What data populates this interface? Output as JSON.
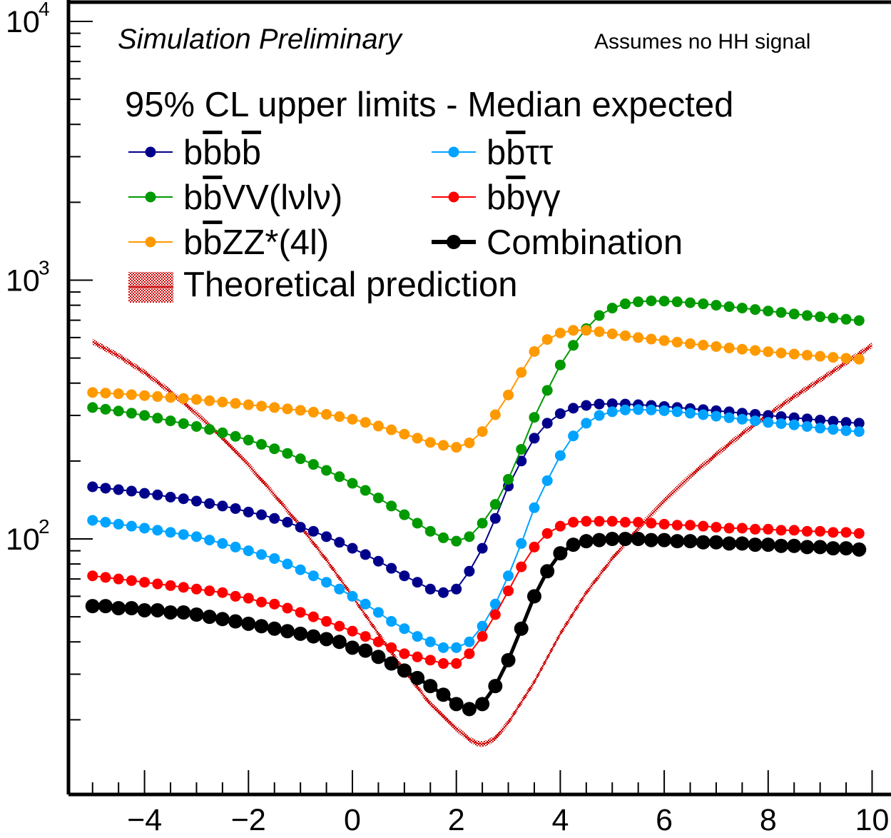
{
  "chart_data": {
    "type": "line",
    "title": "Simulation Preliminary",
    "note": "Assumes no HH signal",
    "xlabel": "",
    "ylabel": "",
    "xlim": [
      -5.3,
      10.3
    ],
    "ylim": [
      16,
      10000
    ],
    "yscale": "log",
    "grid": false,
    "legend_position": "top-left",
    "legend_header": "95% CL upper limits - Median expected",
    "x_ticks": [
      "−4",
      "−2",
      "0",
      "2",
      "4",
      "6",
      "8",
      "10"
    ],
    "y_ticks": [
      {
        "base": "10",
        "exp": "2"
      },
      {
        "base": "10",
        "exp": "3"
      },
      {
        "base": "10",
        "exp": "4"
      }
    ],
    "x": [
      -5,
      -4.75,
      -4.5,
      -4.25,
      -4,
      -3.75,
      -3.5,
      -3.25,
      -3,
      -2.75,
      -2.5,
      -2.25,
      -2,
      -1.75,
      -1.5,
      -1.25,
      -1,
      -0.75,
      -0.5,
      -0.25,
      0,
      0.25,
      0.5,
      0.75,
      1,
      1.25,
      1.5,
      1.75,
      2,
      2.25,
      2.5,
      2.75,
      3,
      3.25,
      3.5,
      3.75,
      4,
      4.25,
      4.5,
      4.75,
      5,
      5.25,
      5.5,
      5.75,
      6,
      6.25,
      6.5,
      6.75,
      7,
      7.25,
      7.5,
      7.75,
      8,
      8.25,
      8.5,
      8.75,
      9,
      9.25,
      9.5,
      9.75
    ],
    "series": [
      {
        "name": "bbbb",
        "color": "#00008b",
        "values": [
          159,
          157,
          155,
          153,
          150,
          148,
          145,
          143,
          140,
          137,
          134,
          131,
          127,
          124,
          120,
          116,
          111,
          107,
          102,
          97,
          92,
          87,
          82,
          77,
          72,
          68,
          64,
          62,
          64,
          75,
          92,
          120,
          160,
          200,
          245,
          280,
          305,
          320,
          328,
          332,
          333,
          332,
          330,
          328,
          325,
          322,
          319,
          316,
          313,
          310,
          306,
          303,
          300,
          297,
          294,
          291,
          288,
          285,
          282,
          280
        ]
      },
      {
        "name": "bbττ",
        "color": "#00a3ff",
        "values": [
          118,
          116,
          114,
          112,
          110,
          108,
          106,
          104,
          102,
          99,
          96,
          93,
          90,
          87,
          84,
          80,
          76,
          72,
          68,
          64,
          60,
          56,
          52,
          48,
          45,
          42,
          40,
          38,
          38,
          40,
          46,
          56,
          72,
          96,
          132,
          168,
          210,
          250,
          280,
          300,
          310,
          315,
          316,
          315,
          313,
          310,
          306,
          302,
          298,
          294,
          290,
          286,
          282,
          279,
          276,
          272,
          268,
          265,
          262,
          260
        ]
      },
      {
        "name": "bbVV(lνlν)",
        "color": "#009900",
        "values": [
          322,
          317,
          312,
          306,
          300,
          293,
          286,
          279,
          272,
          265,
          257,
          249,
          241,
          232,
          223,
          214,
          204,
          194,
          184,
          174,
          164,
          154,
          144,
          134,
          124,
          115,
          107,
          101,
          98,
          102,
          115,
          136,
          170,
          222,
          295,
          375,
          470,
          560,
          650,
          730,
          780,
          810,
          825,
          832,
          830,
          825,
          818,
          810,
          800,
          790,
          780,
          770,
          760,
          750,
          740,
          730,
          722,
          714,
          706,
          698
        ]
      },
      {
        "name": "bbγγ",
        "color": "#ff0000",
        "values": [
          72,
          71,
          70,
          69,
          68,
          67,
          66,
          65,
          64,
          63,
          62,
          60,
          59,
          57,
          56,
          54,
          52,
          50,
          48,
          46,
          44,
          42,
          40,
          38,
          36,
          35,
          34,
          33,
          33,
          36,
          42,
          51,
          63,
          78,
          93,
          105,
          112,
          116,
          117,
          117,
          117,
          116,
          116,
          115,
          114,
          113,
          113,
          112,
          111,
          110,
          110,
          109,
          109,
          108,
          108,
          107,
          107,
          106,
          106,
          105
        ]
      },
      {
        "name": "bbZZ*(4l)",
        "color": "#ff9900",
        "values": [
          368,
          366,
          364,
          361,
          358,
          355,
          352,
          349,
          346,
          342,
          338,
          334,
          330,
          326,
          322,
          318,
          314,
          309,
          303,
          297,
          290,
          282,
          273,
          264,
          254,
          245,
          236,
          230,
          226,
          235,
          260,
          302,
          360,
          440,
          530,
          590,
          625,
          640,
          640,
          632,
          620,
          610,
          600,
          592,
          584,
          576,
          568,
          561,
          554,
          547,
          541,
          535,
          529,
          523,
          518,
          513,
          508,
          503,
          499,
          495
        ]
      },
      {
        "name": "Combination",
        "color": "#000000",
        "values": [
          55,
          55,
          54,
          54,
          53,
          53,
          52,
          52,
          51,
          50,
          49,
          48,
          47,
          46,
          45,
          44,
          43,
          42,
          41,
          40,
          38,
          37,
          35,
          33,
          31,
          29,
          27,
          25,
          23,
          22,
          23,
          27,
          34,
          45,
          60,
          75,
          88,
          95,
          98,
          99,
          100,
          100,
          100,
          99,
          99,
          98,
          98,
          97,
          97,
          96,
          96,
          95,
          95,
          94,
          94,
          93,
          93,
          92,
          92,
          91
        ]
      }
    ],
    "theory": {
      "name": "Theoretical prediction",
      "color": "#cc0000",
      "x": [
        -5,
        -4.5,
        -4,
        -3.5,
        -3,
        -2.5,
        -2,
        -1.5,
        -1,
        -0.5,
        0,
        0.5,
        1,
        1.5,
        2,
        2.25,
        2.4,
        2.5,
        2.6,
        2.75,
        3,
        3.5,
        4,
        4.5,
        5,
        5.5,
        6,
        6.5,
        7,
        7.5,
        8,
        8.5,
        9,
        9.5,
        10
      ],
      "values": [
        578,
        510,
        440,
        370,
        305,
        245,
        193,
        148,
        112,
        83,
        60,
        43,
        31,
        23,
        18.5,
        16.8,
        16.2,
        16.1,
        16.3,
        17,
        19.5,
        28,
        43,
        62,
        84,
        110,
        140,
        175,
        212,
        255,
        302,
        355,
        412,
        480,
        560
      ]
    }
  },
  "legend_entries": [
    {
      "parts": [
        {
          "t": "b"
        },
        {
          "t": "b",
          "bar": true
        },
        {
          "t": "b"
        },
        {
          "t": "b",
          "bar": true
        }
      ]
    },
    {
      "parts": [
        {
          "t": "b"
        },
        {
          "t": "b",
          "bar": true
        },
        {
          "t": "ττ"
        }
      ]
    },
    {
      "parts": [
        {
          "t": "b"
        },
        {
          "t": "b",
          "bar": true
        },
        {
          "t": "VV(lνlν)"
        }
      ]
    },
    {
      "parts": [
        {
          "t": "b"
        },
        {
          "t": "b",
          "bar": true
        },
        {
          "t": "γγ"
        }
      ]
    },
    {
      "parts": [
        {
          "t": "b"
        },
        {
          "t": "b",
          "bar": true
        },
        {
          "t": "ZZ*(4l)"
        }
      ]
    },
    {
      "parts": [
        {
          "t": "Combination"
        }
      ]
    },
    {
      "parts": [
        {
          "t": "Theoretical prediction"
        }
      ]
    }
  ]
}
